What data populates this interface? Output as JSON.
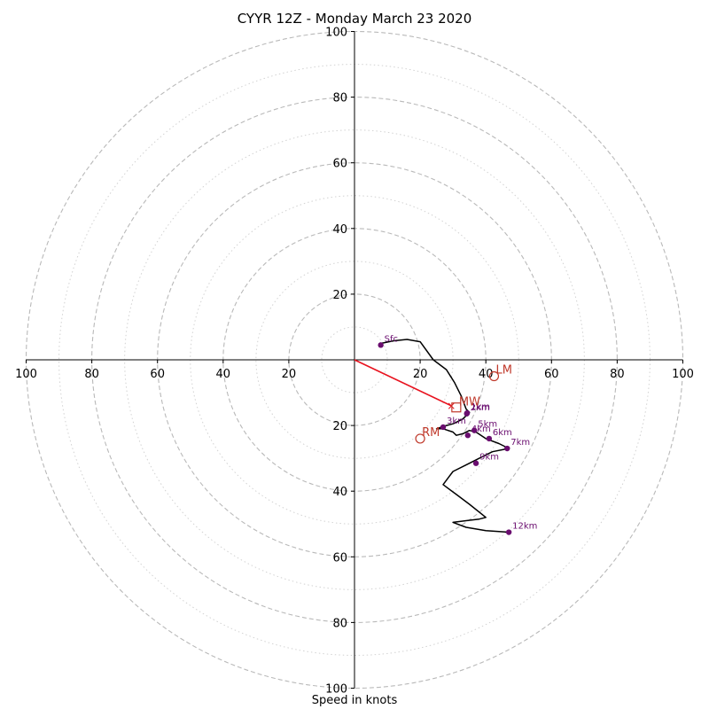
{
  "chart_data": {
    "type": "scatter",
    "title": "CYYR 12Z - Monday March 23 2020",
    "xlabel": "Speed in knots",
    "ylabel": "",
    "xlim": [
      -100,
      100
    ],
    "ylim": [
      -100,
      100
    ],
    "grid": true,
    "rings": {
      "major": [
        20,
        40,
        60,
        80,
        100
      ],
      "minor": [
        10,
        30,
        50,
        70,
        90
      ]
    },
    "tick_labels": {
      "x_left": [
        "100",
        "80",
        "60",
        "40",
        "20"
      ],
      "x_right": [
        "20",
        "40",
        "60",
        "80",
        "100"
      ],
      "y_top": [
        "100",
        "80",
        "60",
        "40",
        "20"
      ],
      "y_bottom": [
        "20",
        "40",
        "60",
        "80",
        "100"
      ]
    },
    "hodograph_trace": {
      "u": [
        8,
        12,
        16,
        20,
        24,
        28,
        30.5,
        32.5,
        34,
        35,
        33,
        31,
        30,
        28,
        25,
        27,
        30,
        31,
        33,
        35,
        37,
        40,
        44,
        47,
        42,
        38,
        34,
        30,
        27,
        31,
        35,
        40,
        38,
        34,
        30,
        34,
        40,
        47
      ],
      "v": [
        5,
        5.8,
        6.2,
        5.5,
        0,
        -3,
        -7,
        -11,
        -15,
        -16,
        -18,
        -19,
        -19.5,
        -20,
        -21,
        -21,
        -22,
        -23,
        -22.5,
        -21.5,
        -22,
        -24,
        -25.5,
        -27,
        -28,
        -30,
        -32,
        -34,
        -38,
        -41,
        -44,
        -48,
        -48.5,
        -49,
        -49.5,
        -51,
        -52,
        -52.5
      ]
    },
    "height_markers": [
      {
        "label": "Sfc",
        "u": 8,
        "v": 4.5
      },
      {
        "label": "1km",
        "u": 34.3,
        "v": -16.2
      },
      {
        "label": "2km",
        "u": 34.2,
        "v": -16.4
      },
      {
        "label": "3km",
        "u": 27,
        "v": -20.5
      },
      {
        "label": "4km",
        "u": 34.5,
        "v": -23
      },
      {
        "label": "5km",
        "u": 36.5,
        "v": -21.5
      },
      {
        "label": "6km",
        "u": 41,
        "v": -24
      },
      {
        "label": "7km",
        "u": 46.5,
        "v": -27
      },
      {
        "label": "9km",
        "u": 37,
        "v": -31.5
      },
      {
        "label": "12km",
        "u": 47,
        "v": -52.5
      }
    ],
    "storm_motion": {
      "mean_wind": {
        "label": "MW",
        "u": 31,
        "v": -14.5
      },
      "left_mover": {
        "label": "LM",
        "u": 42.5,
        "v": -5
      },
      "right_mover": {
        "label": "RM",
        "u": 20,
        "v": -24
      }
    },
    "storm_motion_vector": {
      "from_u": 0,
      "from_v": 0,
      "to_u": 29.5,
      "to_v": -14
    },
    "colors": {
      "trace": "#000000",
      "markers": "#6a0d6f",
      "storm_motion": "#c0392b",
      "arrow": "#e8121e",
      "grid_major": "#b9b9b9",
      "grid_minor": "#d2d2d2"
    }
  }
}
